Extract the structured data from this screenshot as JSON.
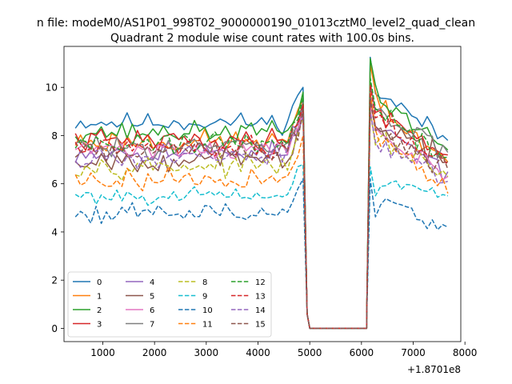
{
  "chart_data": {
    "type": "line",
    "suptitle": "n file: modeM0/AS1P01_998T02_9000000190_01013cztM0_level2_quad_clean",
    "title": "Quadrant 2 module wise count rates with 100.0s bins.",
    "xlabel": "",
    "ylabel": "",
    "offset_text": "+1.8701e8",
    "xlim": [
      250,
      7920
    ],
    "ylim": [
      -0.55,
      11.7
    ],
    "xticks": [
      1000,
      2000,
      3000,
      4000,
      5000,
      6000,
      7000,
      8000
    ],
    "xtick_labels": [
      "1000",
      "2000",
      "3000",
      "4000",
      "5000",
      "6000",
      "7000",
      "8000"
    ],
    "yticks": [
      0,
      2,
      4,
      6,
      8,
      10
    ],
    "ytick_labels": [
      "0",
      "2",
      "4",
      "6",
      "8",
      "10"
    ],
    "segments": [
      {
        "x_start": 470,
        "x_end": 4870,
        "step": 100
      },
      {
        "x_start": 4870,
        "x_end": 6100,
        "step": 100
      },
      {
        "x_start": 6170,
        "x_end": 7670,
        "step": 100
      }
    ],
    "series": [
      {
        "name": "0",
        "color": "#1f77b4",
        "dash": "solid",
        "pre_mean": 8.55,
        "pre_end": 10.0,
        "post_peak": 11.25,
        "post_end": 7.8,
        "noise": 0.28,
        "seed": 11
      },
      {
        "name": "1",
        "color": "#ff7f0e",
        "dash": "solid",
        "pre_mean": 7.75,
        "pre_end": 9.5,
        "post_peak": 10.95,
        "post_end": 6.9,
        "noise": 0.35,
        "seed": 23
      },
      {
        "name": "2",
        "color": "#2ca02c",
        "dash": "solid",
        "pre_mean": 8.15,
        "pre_end": 9.8,
        "post_peak": 11.2,
        "post_end": 7.4,
        "noise": 0.3,
        "seed": 37
      },
      {
        "name": "3",
        "color": "#d62728",
        "dash": "solid",
        "pre_mean": 7.8,
        "pre_end": 9.4,
        "post_peak": 10.2,
        "post_end": 7.2,
        "noise": 0.32,
        "seed": 41
      },
      {
        "name": "4",
        "color": "#9467bd",
        "dash": "solid",
        "pre_mean": 7.35,
        "pre_end": 9.2,
        "post_peak": 9.7,
        "post_end": 6.5,
        "noise": 0.32,
        "seed": 53
      },
      {
        "name": "5",
        "color": "#8c564b",
        "dash": "solid",
        "pre_mean": 7.0,
        "pre_end": 9.1,
        "post_peak": 9.6,
        "post_end": 6.9,
        "noise": 0.33,
        "seed": 67
      },
      {
        "name": "6",
        "color": "#e377c2",
        "dash": "solid",
        "pre_mean": 7.45,
        "pre_end": 9.0,
        "post_peak": 9.3,
        "post_end": 6.3,
        "noise": 0.3,
        "seed": 71
      },
      {
        "name": "7",
        "color": "#7f7f7f",
        "dash": "solid",
        "pre_mean": 7.55,
        "pre_end": 9.4,
        "post_peak": 10.1,
        "post_end": 7.3,
        "noise": 0.3,
        "seed": 83
      },
      {
        "name": "8",
        "color": "#bcbd22",
        "dash": "dashed",
        "pre_mean": 6.75,
        "pre_end": 8.8,
        "post_peak": 9.0,
        "post_end": 6.3,
        "noise": 0.3,
        "seed": 97
      },
      {
        "name": "9",
        "color": "#17becf",
        "dash": "dashed",
        "pre_mean": 5.5,
        "pre_end": 6.8,
        "post_peak": 6.7,
        "post_end": 5.5,
        "noise": 0.22,
        "seed": 101
      },
      {
        "name": "10",
        "color": "#1f77b4",
        "dash": "dashed",
        "pre_mean": 4.8,
        "pre_end": 6.2,
        "post_peak": 6.2,
        "post_end": 4.2,
        "noise": 0.25,
        "seed": 113
      },
      {
        "name": "11",
        "color": "#ff7f0e",
        "dash": "dashed",
        "pre_mean": 6.2,
        "pre_end": 8.0,
        "post_peak": 9.8,
        "post_end": 5.6,
        "noise": 0.35,
        "seed": 127
      },
      {
        "name": "12",
        "color": "#2ca02c",
        "dash": "dashed",
        "pre_mean": 7.7,
        "pre_end": 9.6,
        "post_peak": 10.4,
        "post_end": 7.1,
        "noise": 0.3,
        "seed": 131
      },
      {
        "name": "13",
        "color": "#d62728",
        "dash": "dashed",
        "pre_mean": 7.55,
        "pre_end": 9.3,
        "post_peak": 10.1,
        "post_end": 6.8,
        "noise": 0.3,
        "seed": 149
      },
      {
        "name": "14",
        "color": "#9467bd",
        "dash": "dashed",
        "pre_mean": 7.1,
        "pre_end": 8.8,
        "post_peak": 9.0,
        "post_end": 6.1,
        "noise": 0.3,
        "seed": 157
      },
      {
        "name": "15",
        "color": "#8c564b",
        "dash": "dashed",
        "pre_mean": 7.4,
        "pre_end": 9.1,
        "post_peak": 9.5,
        "post_end": 6.6,
        "noise": 0.3,
        "seed": 163
      }
    ],
    "legend": {
      "location": "lower-left",
      "columns": 4
    }
  }
}
